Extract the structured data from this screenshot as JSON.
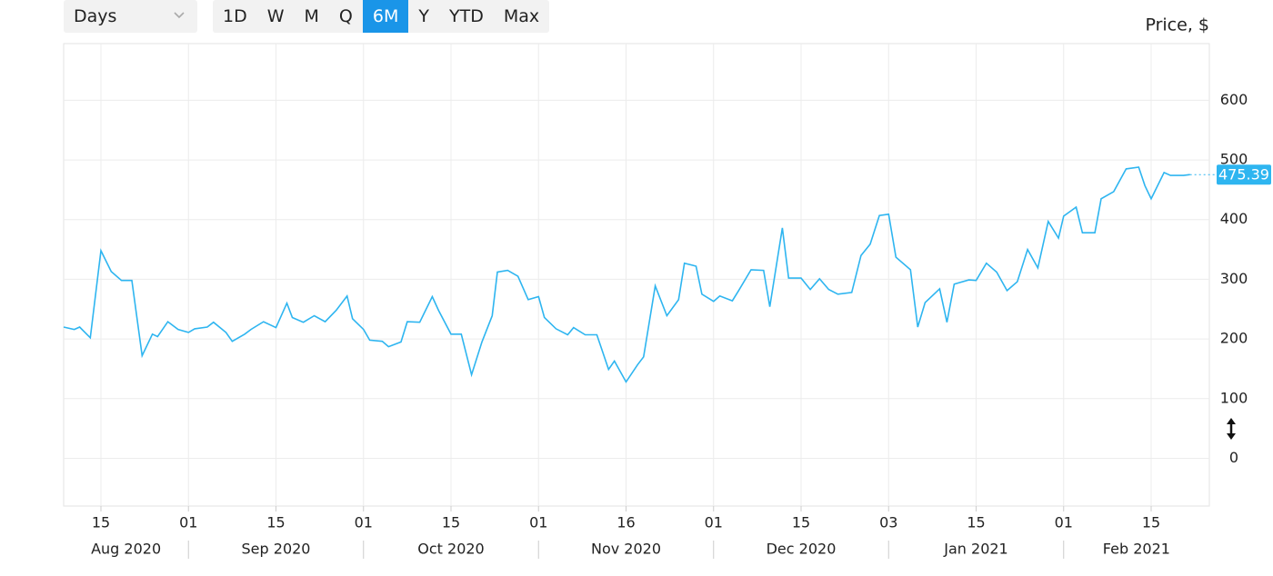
{
  "controls": {
    "interval": "Days",
    "ranges": [
      "1D",
      "W",
      "M",
      "Q",
      "6M",
      "Y",
      "YTD",
      "Max"
    ],
    "active_range": "6M"
  },
  "chart_data": {
    "type": "line",
    "y_label": "Price, $",
    "color": "#2eb5f0",
    "grid": true,
    "x": [
      "2020-08-08",
      "2020-08-10",
      "2020-08-11",
      "2020-08-13",
      "2020-08-15",
      "2020-08-17",
      "2020-08-19",
      "2020-08-21",
      "2020-08-23",
      "2020-08-25",
      "2020-08-26",
      "2020-08-28",
      "2020-08-30",
      "2020-09-01",
      "2020-09-02",
      "2020-09-04",
      "2020-09-05",
      "2020-09-07",
      "2020-09-08",
      "2020-09-10",
      "2020-09-11",
      "2020-09-13",
      "2020-09-15",
      "2020-09-17",
      "2020-09-18",
      "2020-09-20",
      "2020-09-22",
      "2020-09-24",
      "2020-09-26",
      "2020-09-28",
      "2020-09-29",
      "2020-10-01",
      "2020-10-02",
      "2020-10-04",
      "2020-10-05",
      "2020-10-07",
      "2020-10-08",
      "2020-10-10",
      "2020-10-12",
      "2020-10-13",
      "2020-10-15",
      "2020-10-17",
      "2020-10-19",
      "2020-10-21",
      "2020-10-23",
      "2020-10-24",
      "2020-10-26",
      "2020-10-28",
      "2020-10-30",
      "2020-11-01",
      "2020-11-02",
      "2020-11-04",
      "2020-11-06",
      "2020-11-07",
      "2020-11-09",
      "2020-11-11",
      "2020-11-13",
      "2020-11-14",
      "2020-11-16",
      "2020-11-18",
      "2020-11-19",
      "2020-11-21",
      "2020-11-23",
      "2020-11-25",
      "2020-11-26",
      "2020-11-28",
      "2020-11-29",
      "2020-12-01",
      "2020-12-02",
      "2020-12-04",
      "2020-12-05",
      "2020-12-07",
      "2020-12-09",
      "2020-12-10",
      "2020-12-12",
      "2020-12-13",
      "2020-12-15",
      "2020-12-17",
      "2020-12-19",
      "2020-12-21",
      "2020-12-23",
      "2020-12-26",
      "2020-12-28",
      "2020-12-30",
      "2021-01-01",
      "2021-01-03",
      "2021-01-04",
      "2021-01-06",
      "2021-01-07",
      "2021-01-08",
      "2021-01-10",
      "2021-01-11",
      "2021-01-12",
      "2021-01-14",
      "2021-01-15",
      "2021-01-17",
      "2021-01-19",
      "2021-01-21",
      "2021-01-23",
      "2021-01-25",
      "2021-01-27",
      "2021-01-29",
      "2021-01-31",
      "2021-02-01",
      "2021-02-03",
      "2021-02-04",
      "2021-02-06",
      "2021-02-07",
      "2021-02-09",
      "2021-02-11",
      "2021-02-13",
      "2021-02-14",
      "2021-02-15",
      "2021-02-17",
      "2021-02-18",
      "2021-02-20",
      "2021-02-21"
    ],
    "values": [
      220,
      216,
      220,
      202,
      348,
      313,
      298,
      298,
      172,
      208,
      204,
      229,
      216,
      211,
      217,
      220,
      228,
      211,
      196,
      208,
      216,
      229,
      219,
      260,
      236,
      228,
      239,
      229,
      248,
      272,
      234,
      216,
      198,
      196,
      187,
      195,
      229,
      228,
      271,
      248,
      208,
      208,
      140,
      195,
      239,
      312,
      315,
      305,
      266,
      271,
      236,
      217,
      207,
      219,
      207,
      207,
      149,
      163,
      128,
      157,
      170,
      289,
      239,
      266,
      327,
      322,
      275,
      263,
      272,
      264,
      281,
      316,
      315,
      254,
      386,
      302,
      302,
      283,
      301,
      283,
      275,
      278,
      340,
      359,
      407,
      409,
      337,
      316,
      220,
      261,
      284,
      228,
      292,
      299,
      298,
      327,
      312,
      281,
      296,
      350,
      319,
      397,
      369,
      406,
      421,
      378,
      378,
      435,
      447,
      485,
      488,
      457,
      435,
      479,
      474,
      474,
      475.39
    ],
    "xlim": [
      "2020-08-08",
      "2021-02-24"
    ],
    "xticks": [
      {
        "value": "2020-08-15",
        "label": "15"
      },
      {
        "value": "2020-09-01",
        "label": "01"
      },
      {
        "value": "2020-09-15",
        "label": "15"
      },
      {
        "value": "2020-10-01",
        "label": "01"
      },
      {
        "value": "2020-10-15",
        "label": "15"
      },
      {
        "value": "2020-11-01",
        "label": "01"
      },
      {
        "value": "2020-11-16",
        "label": "16"
      },
      {
        "value": "2020-12-01",
        "label": "01"
      },
      {
        "value": "2020-12-15",
        "label": "15"
      },
      {
        "value": "2021-01-03",
        "label": "03"
      },
      {
        "value": "2021-01-15",
        "label": "15"
      },
      {
        "value": "2021-02-01",
        "label": "01"
      },
      {
        "value": "2021-02-15",
        "label": "15"
      }
    ],
    "months": [
      "Aug 2020",
      "Sep 2020",
      "Oct 2020",
      "Nov 2020",
      "Dec 2020",
      "Jan 2021",
      "Feb 2021"
    ],
    "ylim": [
      -80,
      695
    ],
    "yticks": [
      0,
      100,
      200,
      300,
      400,
      500,
      600
    ]
  }
}
